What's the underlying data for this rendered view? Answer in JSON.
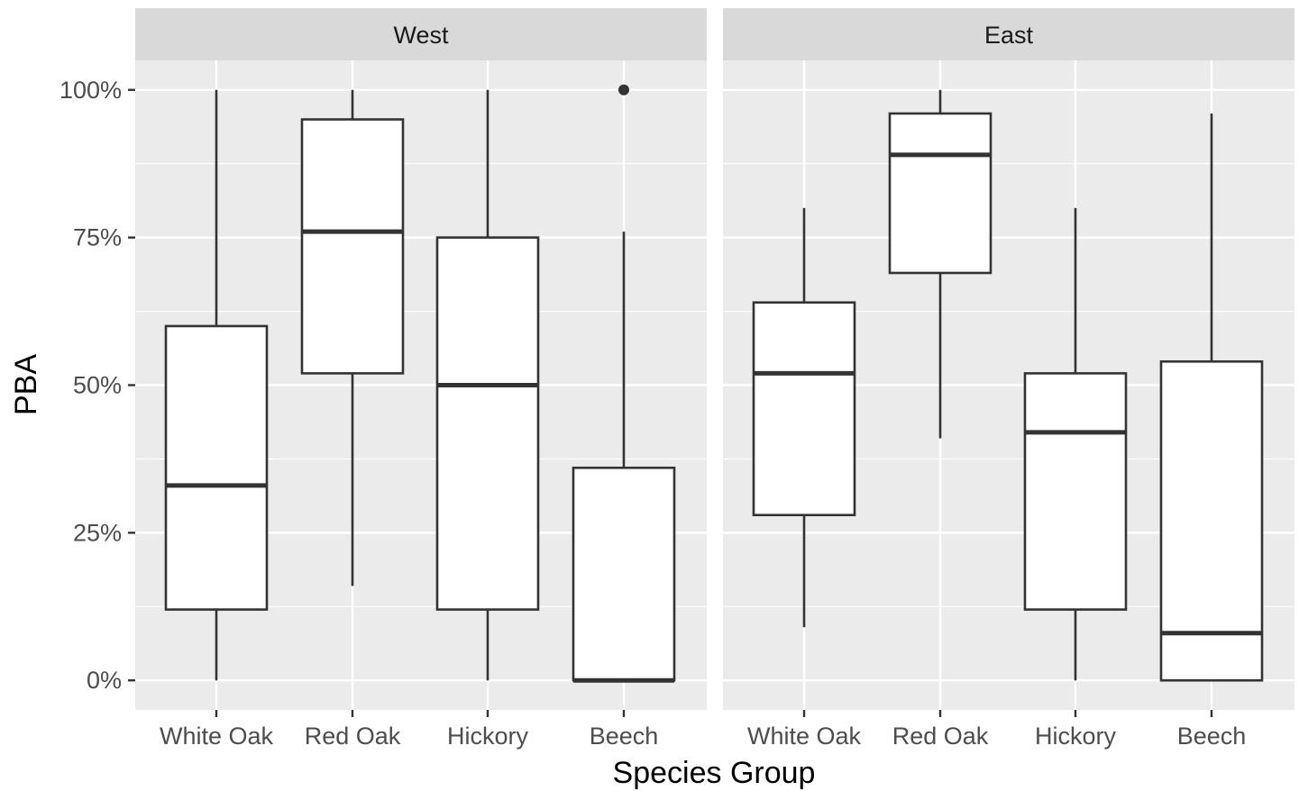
{
  "chart_data": {
    "type": "boxplot",
    "xlabel": "Species Group",
    "ylabel": "PBA",
    "ylim": [
      -0.05,
      1.05
    ],
    "y_ticks": [
      0,
      0.25,
      0.5,
      0.75,
      1.0
    ],
    "y_tick_labels": [
      "0%",
      "25%",
      "50%",
      "75%",
      "100%"
    ],
    "categories": [
      "White Oak",
      "Red Oak",
      "Hickory",
      "Beech"
    ],
    "grid": true,
    "colors": {
      "panel_bg": "#ebebeb",
      "strip_bg": "#d9d9d9",
      "grid": "#ffffff",
      "box_fill": "#ffffff",
      "box_line": "#333333"
    },
    "facets": [
      {
        "name": "West",
        "boxes": [
          {
            "category": "White Oak",
            "whisker_low": 0.0,
            "q1": 0.12,
            "median": 0.33,
            "q3": 0.6,
            "whisker_high": 1.0,
            "outliers": []
          },
          {
            "category": "Red Oak",
            "whisker_low": 0.16,
            "q1": 0.52,
            "median": 0.76,
            "q3": 0.95,
            "whisker_high": 1.0,
            "outliers": []
          },
          {
            "category": "Hickory",
            "whisker_low": 0.0,
            "q1": 0.12,
            "median": 0.5,
            "q3": 0.75,
            "whisker_high": 1.0,
            "outliers": []
          },
          {
            "category": "Beech",
            "whisker_low": 0.0,
            "q1": 0.0,
            "median": 0.0,
            "q3": 0.36,
            "whisker_high": 0.76,
            "outliers": [
              1.0
            ]
          }
        ]
      },
      {
        "name": "East",
        "boxes": [
          {
            "category": "White Oak",
            "whisker_low": 0.09,
            "q1": 0.28,
            "median": 0.52,
            "q3": 0.64,
            "whisker_high": 0.8,
            "outliers": []
          },
          {
            "category": "Red Oak",
            "whisker_low": 0.41,
            "q1": 0.69,
            "median": 0.89,
            "q3": 0.96,
            "whisker_high": 1.0,
            "outliers": []
          },
          {
            "category": "Hickory",
            "whisker_low": 0.0,
            "q1": 0.12,
            "median": 0.42,
            "q3": 0.52,
            "whisker_high": 0.8,
            "outliers": []
          },
          {
            "category": "Beech",
            "whisker_low": 0.0,
            "q1": 0.0,
            "median": 0.08,
            "q3": 0.54,
            "whisker_high": 0.96,
            "outliers": []
          }
        ]
      }
    ]
  }
}
